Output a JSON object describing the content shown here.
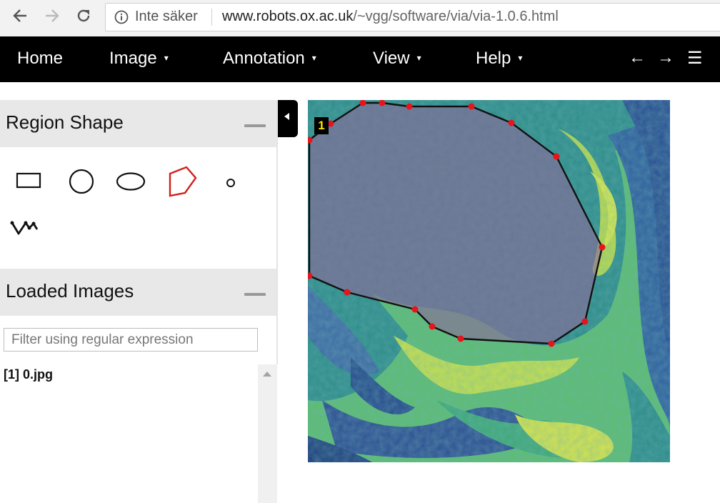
{
  "browser": {
    "back_icon": "arrow-left-icon",
    "forward_icon": "arrow-right-icon",
    "reload_icon": "reload-icon",
    "security_icon": "info-circle-icon",
    "security_text": "Inte säker",
    "url_host": "www.robots.ox.ac.uk",
    "url_path": "/~vgg/software/via/via-1.0.6.html"
  },
  "topnav": {
    "menus": [
      {
        "label": "Home",
        "has_caret": false
      },
      {
        "label": "Image",
        "has_caret": true
      },
      {
        "label": "Annotation",
        "has_caret": true
      },
      {
        "label": "View",
        "has_caret": true
      },
      {
        "label": "Help",
        "has_caret": true
      }
    ],
    "caret": "▾",
    "prev": "←",
    "next": "→",
    "menu_icon": "☰"
  },
  "region_shape": {
    "title": "Region Shape",
    "shapes": [
      "rect",
      "circle",
      "ellipse",
      "polygon",
      "point",
      "polyline"
    ],
    "selected": "polygon"
  },
  "loaded_images": {
    "title": "Loaded Images",
    "filter_placeholder": "Filter using regular expression",
    "items": [
      {
        "index": "[1]",
        "name": "0.jpg"
      }
    ]
  },
  "canvas": {
    "region_label": "1",
    "colors": {
      "vertex": "#e8141b",
      "edge": "#111111",
      "fill": "#8a6a9a",
      "selected_shape": "#d2201a"
    }
  }
}
